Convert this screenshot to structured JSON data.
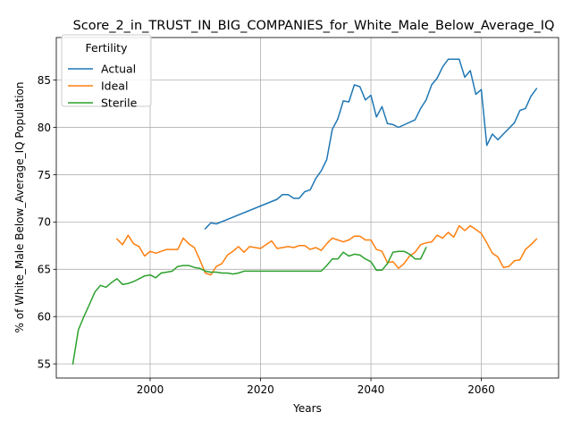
{
  "chart_data": {
    "type": "line",
    "title": "Score_2_in_TRUST_IN_BIG_COMPANIES_for_White_Male_Below_Average_IQ",
    "xlabel": "Years",
    "ylabel": "% of White_Male Below_Average_IQ Population",
    "xlim": [
      1983,
      2074
    ],
    "ylim": [
      53.5,
      89.5
    ],
    "xticks": [
      2000,
      2020,
      2040,
      2060
    ],
    "yticks": [
      55,
      60,
      65,
      70,
      75,
      80,
      85
    ],
    "grid": true,
    "legend": {
      "title": "Fertility",
      "placement": "top-left"
    },
    "series": [
      {
        "name": "Actual",
        "color": "#1f77b4",
        "x": [
          2010,
          2011,
          2012,
          2023,
          2024,
          2025,
          2026,
          2027,
          2028,
          2029,
          2030,
          2031,
          2032,
          2033,
          2034,
          2035,
          2036,
          2037,
          2038,
          2039,
          2040,
          2041,
          2042,
          2043,
          2044,
          2045,
          2048,
          2049,
          2050,
          2051,
          2052,
          2053,
          2054,
          2055,
          2056,
          2057,
          2058,
          2059,
          2060,
          2061,
          2062,
          2063,
          2064,
          2066,
          2067,
          2068,
          2069,
          2070
        ],
        "y": [
          69.3,
          69.9,
          69.8,
          72.4,
          72.9,
          72.9,
          72.5,
          72.5,
          73.2,
          73.4,
          74.6,
          75.4,
          76.6,
          79.8,
          80.9,
          82.8,
          82.7,
          84.5,
          84.3,
          82.9,
          83.4,
          81.1,
          82.2,
          80.4,
          80.3,
          80.0,
          80.8,
          82.0,
          82.9,
          84.5,
          85.2,
          86.4,
          87.2,
          87.2,
          87.2,
          85.3,
          86.0,
          83.5,
          84.0,
          78.1,
          79.3,
          78.7,
          79.3,
          80.5,
          81.8,
          82.0,
          83.3,
          84.1
        ]
      },
      {
        "name": "Ideal",
        "color": "#ff7f0e",
        "x": [
          1994,
          1995,
          1996,
          1997,
          1998,
          1999,
          2000,
          2001,
          2002,
          2003,
          2004,
          2005,
          2006,
          2007,
          2008,
          2009,
          2010,
          2011,
          2012,
          2013,
          2014,
          2015,
          2016,
          2017,
          2018,
          2019,
          2020,
          2021,
          2022,
          2023,
          2024,
          2025,
          2026,
          2027,
          2028,
          2029,
          2030,
          2031,
          2032,
          2033,
          2034,
          2035,
          2036,
          2037,
          2038,
          2039,
          2040,
          2041,
          2042,
          2043,
          2044,
          2045,
          2046,
          2047,
          2048,
          2049,
          2050,
          2051,
          2052,
          2053,
          2054,
          2055,
          2056,
          2057,
          2058,
          2059,
          2060,
          2061,
          2062,
          2063,
          2064,
          2065,
          2066,
          2067,
          2068,
          2069,
          2070
        ],
        "y": [
          68.2,
          67.6,
          68.6,
          67.7,
          67.4,
          66.4,
          66.9,
          66.7,
          66.9,
          67.1,
          67.1,
          67.1,
          68.3,
          67.7,
          67.3,
          66.0,
          64.6,
          64.4,
          65.3,
          65.6,
          66.5,
          66.9,
          67.4,
          66.8,
          67.4,
          67.3,
          67.2,
          67.6,
          68.0,
          67.2,
          67.3,
          67.4,
          67.3,
          67.5,
          67.5,
          67.1,
          67.3,
          67.0,
          67.7,
          68.3,
          68.1,
          67.9,
          68.1,
          68.5,
          68.5,
          68.1,
          68.1,
          67.1,
          66.9,
          65.7,
          65.8,
          65.1,
          65.6,
          66.4,
          66.8,
          67.6,
          67.8,
          67.9,
          68.6,
          68.3,
          68.9,
          68.4,
          69.6,
          69.1,
          69.6,
          69.2,
          68.8,
          67.8,
          66.7,
          66.3,
          65.2,
          65.3,
          65.9,
          66.0,
          67.1,
          67.6,
          68.2
        ]
      },
      {
        "name": "Sterile",
        "color": "#2ca02c",
        "x": [
          1986,
          1987,
          1988,
          1989,
          1990,
          1991,
          1992,
          1993,
          1994,
          1995,
          1996,
          1997,
          1998,
          1999,
          2000,
          2001,
          2002,
          2003,
          2004,
          2005,
          2006,
          2007,
          2008,
          2009,
          2010,
          2011,
          2012,
          2013,
          2014,
          2015,
          2016,
          2017,
          2020,
          2025,
          2030,
          2031,
          2032,
          2033,
          2034,
          2035,
          2036,
          2037,
          2038,
          2039,
          2040,
          2041,
          2042,
          2043,
          2044,
          2045,
          2046,
          2047,
          2048,
          2049,
          2050
        ],
        "y": [
          55.0,
          58.6,
          60.0,
          61.3,
          62.6,
          63.3,
          63.1,
          63.6,
          64.0,
          63.4,
          63.5,
          63.7,
          64.0,
          64.3,
          64.4,
          64.1,
          64.6,
          64.7,
          64.8,
          65.3,
          65.4,
          65.4,
          65.2,
          65.1,
          64.8,
          64.7,
          64.7,
          64.6,
          64.6,
          64.5,
          64.6,
          64.8,
          64.8,
          64.8,
          64.8,
          64.8,
          65.4,
          66.1,
          66.1,
          66.8,
          66.4,
          66.6,
          66.5,
          66.1,
          65.8,
          64.9,
          64.9,
          65.6,
          66.8,
          66.9,
          66.9,
          66.6,
          66.1,
          66.1,
          67.3
        ]
      }
    ]
  }
}
